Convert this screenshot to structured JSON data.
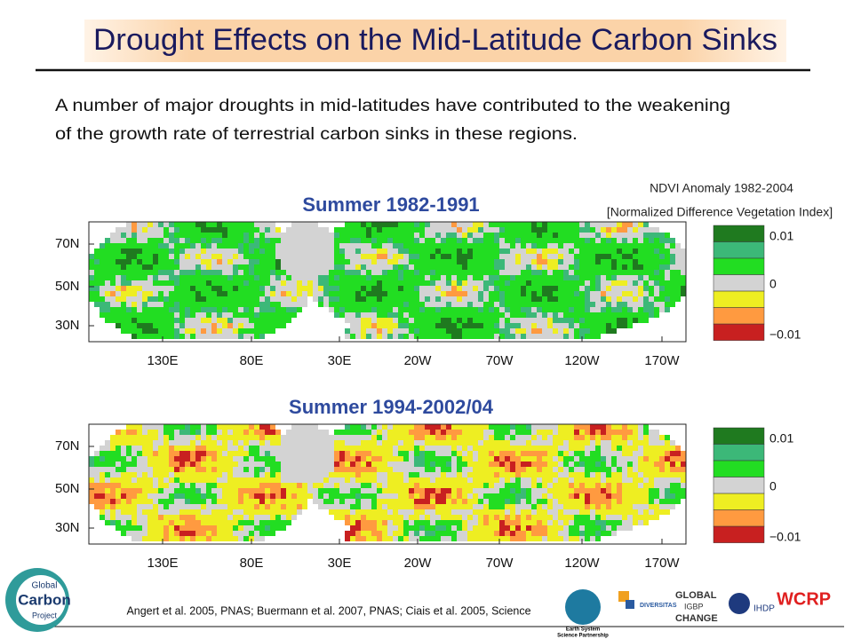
{
  "header": {
    "title": "Drought Effects on the Mid-Latitude Carbon Sinks"
  },
  "intro": [
    "A number of major droughts in mid-latitudes have contributed to the weakening",
    "of the growth rate of terrestrial carbon sinks in these regions."
  ],
  "legend": {
    "title": [
      "NDVI Anomaly 1982-2004",
      "[Normalized Difference Vegetation Index]"
    ]
  },
  "maps": [
    {
      "title": "Summer 1982-1991",
      "lat_labels": [
        "70N",
        "50N",
        "30N"
      ],
      "lon_labels": [
        "130E",
        "80E",
        "30E",
        "20W",
        "70W",
        "120W",
        "170W"
      ],
      "legend_labels": [
        "0.01",
        "0",
        "−0.01"
      ]
    },
    {
      "title": "Summer 1994-2002/04",
      "lat_labels": [
        "70N",
        "50N",
        "30N"
      ],
      "lon_labels": [
        "130E",
        "80E",
        "30E",
        "20W",
        "70W",
        "120W",
        "170W"
      ],
      "legend_labels": [
        "0.01",
        "0",
        "−0.01"
      ]
    }
  ],
  "footer": {
    "citation": "Angert et al. 2005, PNAS; Buermann et al. 2007, PNAS; Ciais et al. 2005, Science",
    "logos": {
      "gcp": [
        "Global",
        "Carbon",
        "Project"
      ],
      "essp": [
        "Earth System",
        "Science Partnership"
      ],
      "diversitas": "DIVERSITAS",
      "igbp": [
        "GLOBAL",
        "IGBP",
        "CHANGE"
      ],
      "ihdp": "IHDP",
      "wcrp": "WCRP"
    }
  }
}
